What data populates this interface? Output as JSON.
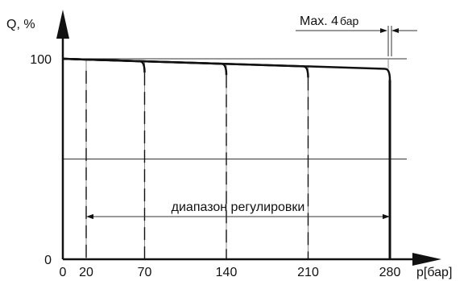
{
  "chart_data": {
    "type": "line",
    "ylabel": "Q, %",
    "xlabel": "p[бар]",
    "xlim": [
      0,
      300
    ],
    "ylim": [
      0,
      100
    ],
    "x_ticks": [
      0,
      20,
      70,
      140,
      210,
      280
    ],
    "x_tick_labels": [
      "0",
      "20",
      "70",
      "140",
      "210",
      "280"
    ],
    "y_ticks": [
      0,
      100
    ],
    "y_tick_labels": [
      "0",
      "100"
    ],
    "grid_y": [
      50,
      100
    ],
    "grid_x": [
      20,
      70,
      140,
      210,
      280
    ],
    "envelope": {
      "x": [
        0,
        280
      ],
      "y": [
        100,
        95
      ]
    },
    "cutoffs": [
      20,
      70,
      140,
      210,
      280
    ],
    "range": {
      "from": 20,
      "to": 280,
      "label": "диапазон регулировки"
    },
    "max_annotation": {
      "label": "Max. 4",
      "unit": "бар",
      "at": 280
    }
  }
}
